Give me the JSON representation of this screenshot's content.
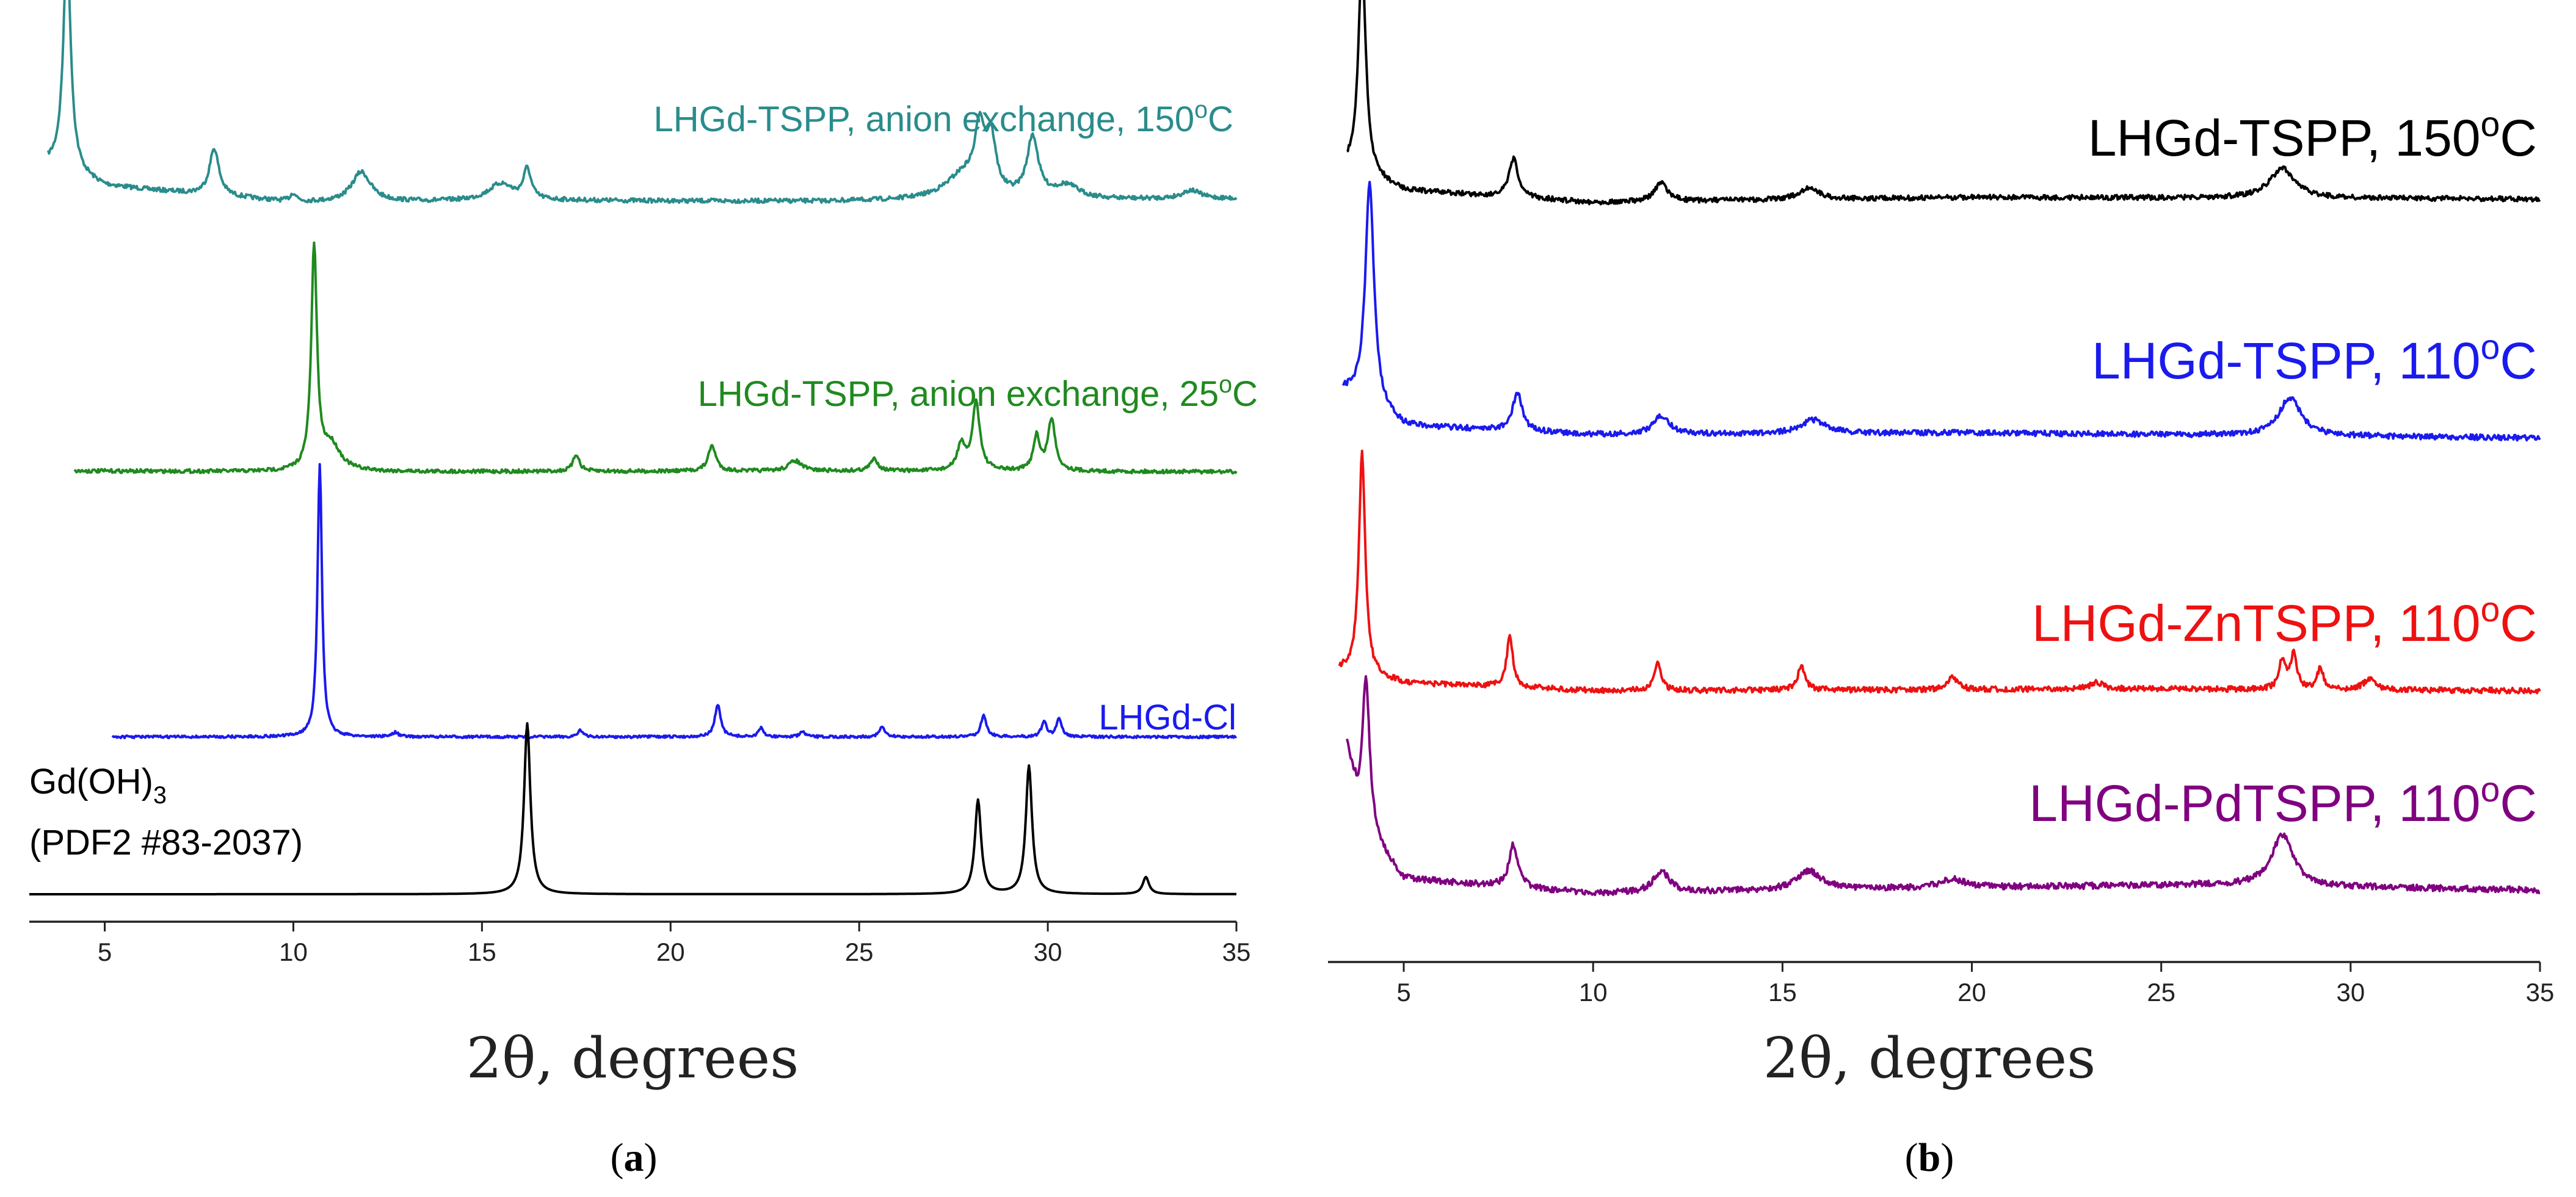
{
  "chart_data": [
    {
      "type": "line",
      "panel": "(a)",
      "panel_letter": "a",
      "xlabel": "2θ, degrees",
      "xlim": [
        3,
        35
      ],
      "xticks": [
        5,
        10,
        15,
        20,
        25,
        30,
        35
      ],
      "y_axis": "hidden",
      "grid": false,
      "legend": "inline labels",
      "series": [
        {
          "name": "LHGd-TSPP, anion exchange, 150°C",
          "label_main": "LHGd-TSPP, anion exchange, 150",
          "label_sup": "o",
          "label_end": "C",
          "color": "#2a8c8c",
          "x_start": 3.5,
          "baseline": [
            [
              3.5,
              0.5
            ],
            [
              5,
              0.25
            ],
            [
              10,
              0.06
            ],
            [
              17,
              0.08
            ],
            [
              24,
              0.07
            ],
            [
              35,
              0.1
            ]
          ],
          "peaks": [
            [
              4.0,
              2.6,
              0.12
            ],
            [
              7.9,
              0.55,
              0.15
            ],
            [
              10.0,
              0.1,
              0.1
            ],
            [
              11.8,
              0.35,
              0.3
            ],
            [
              15.5,
              0.2,
              0.4
            ],
            [
              16.2,
              0.35,
              0.12
            ],
            [
              27.8,
              0.3,
              0.6
            ],
            [
              28.2,
              0.7,
              0.15
            ],
            [
              28.5,
              0.6,
              0.15
            ],
            [
              29.6,
              0.7,
              0.18
            ],
            [
              30.5,
              0.15,
              0.4
            ],
            [
              33.8,
              0.1,
              0.3
            ]
          ]
        },
        {
          "name": "LHGd-TSPP, anion exchange, 25°C",
          "label_main": "LHGd-TSPP, anion exchange, 25",
          "label_sup": "o",
          "label_end": "C",
          "color": "#1f8a1f",
          "x_start": 4.2,
          "baseline": [
            [
              4.2,
              0.06
            ],
            [
              10,
              0.05
            ],
            [
              25,
              0.06
            ],
            [
              35,
              0.05
            ]
          ],
          "peaks": [
            [
              10.55,
              2.6,
              0.09
            ],
            [
              11.0,
              0.3,
              0.3
            ],
            [
              17.5,
              0.2,
              0.1
            ],
            [
              21.1,
              0.3,
              0.12
            ],
            [
              23.3,
              0.12,
              0.2
            ],
            [
              25.4,
              0.14,
              0.12
            ],
            [
              27.7,
              0.3,
              0.12
            ],
            [
              28.1,
              0.8,
              0.12
            ],
            [
              29.7,
              0.4,
              0.1
            ],
            [
              30.1,
              0.6,
              0.12
            ]
          ]
        },
        {
          "name": "LHGd-Cl",
          "label_main": "LHGd-Cl",
          "label_sup": "",
          "label_end": "",
          "color": "#1a1aee",
          "x_start": 5.2,
          "baseline": [
            [
              5.2,
              0.02
            ],
            [
              35,
              0.02
            ]
          ],
          "peaks": [
            [
              10.7,
              3.2,
              0.07
            ],
            [
              12.7,
              0.05,
              0.1
            ],
            [
              17.6,
              0.08,
              0.08
            ],
            [
              21.25,
              0.38,
              0.09
            ],
            [
              22.4,
              0.1,
              0.08
            ],
            [
              23.5,
              0.06,
              0.08
            ],
            [
              25.6,
              0.12,
              0.08
            ],
            [
              28.3,
              0.25,
              0.09
            ],
            [
              29.9,
              0.18,
              0.08
            ],
            [
              30.3,
              0.22,
              0.08
            ]
          ]
        },
        {
          "name": "Gd(OH)3 (PDF2 #83-2037)",
          "label_main": "Gd(OH)",
          "label_sub": "3",
          "label_line2": "(PDF2 #83-2037)",
          "color": "#000000",
          "x_start": 3.0,
          "baseline": [
            [
              3,
              0.0
            ],
            [
              35,
              0.0
            ]
          ],
          "peaks": [
            [
              16.2,
              2.0,
              0.1
            ],
            [
              28.15,
              1.1,
              0.1
            ],
            [
              29.5,
              1.5,
              0.1
            ],
            [
              32.6,
              0.2,
              0.1
            ]
          ]
        }
      ]
    },
    {
      "type": "line",
      "panel": "(b)",
      "panel_letter": "b",
      "xlabel": "2θ, degrees",
      "xlim": [
        3,
        35
      ],
      "xticks": [
        5,
        10,
        15,
        20,
        25,
        30,
        35
      ],
      "y_axis": "hidden",
      "grid": false,
      "legend": "inline labels",
      "series": [
        {
          "name": "LHGd-TSPP, 150°C",
          "label_main": "LHGd-TSPP, 150",
          "label_sup": "o",
          "label_end": "C",
          "color": "#000000",
          "x_start": 3.5,
          "baseline": [
            [
              3.5,
              0.45
            ],
            [
              5,
              0.2
            ],
            [
              10,
              0.06
            ],
            [
              20,
              0.12
            ],
            [
              35,
              0.1
            ]
          ],
          "peaks": [
            [
              3.9,
              2.5,
              0.12
            ],
            [
              7.9,
              0.45,
              0.14
            ],
            [
              11.8,
              0.22,
              0.2
            ],
            [
              15.7,
              0.14,
              0.3
            ],
            [
              28.2,
              0.35,
              0.4
            ]
          ]
        },
        {
          "name": "LHGd-TSPP, 110°C",
          "label_main": "LHGd-TSPP, 110",
          "label_sup": "o",
          "label_end": "C",
          "color": "#1a1aee",
          "x_start": 3.4,
          "baseline": [
            [
              3.4,
              0.6
            ],
            [
              5,
              0.2
            ],
            [
              10,
              0.1
            ],
            [
              20,
              0.12
            ],
            [
              35,
              0.06
            ]
          ],
          "peaks": [
            [
              4.1,
              2.6,
              0.14
            ],
            [
              8.0,
              0.45,
              0.15
            ],
            [
              11.8,
              0.22,
              0.25
            ],
            [
              15.8,
              0.16,
              0.4
            ],
            [
              28.4,
              0.45,
              0.35
            ]
          ]
        },
        {
          "name": "LHGd-ZnTSPP, 110°C",
          "label_main": "LHGd-ZnTSPP, 110",
          "label_sup": "o",
          "label_end": "C",
          "color": "#ee1111",
          "x_start": 3.3,
          "baseline": [
            [
              3.3,
              0.3
            ],
            [
              5,
              0.15
            ],
            [
              10,
              0.06
            ],
            [
              25,
              0.08
            ],
            [
              35,
              0.06
            ]
          ],
          "peaks": [
            [
              3.9,
              2.6,
              0.1
            ],
            [
              7.8,
              0.6,
              0.1
            ],
            [
              11.7,
              0.35,
              0.1
            ],
            [
              15.5,
              0.28,
              0.12
            ],
            [
              19.5,
              0.15,
              0.15
            ],
            [
              23.3,
              0.08,
              0.2
            ],
            [
              28.2,
              0.35,
              0.1
            ],
            [
              28.5,
              0.4,
              0.1
            ],
            [
              29.2,
              0.25,
              0.1
            ],
            [
              30.5,
              0.12,
              0.2
            ]
          ]
        },
        {
          "name": "LHGd-PdTSPP, 110°C",
          "label_main": "LHGd-PdTSPP, 110",
          "label_sup": "o",
          "label_end": "C",
          "color": "#800080",
          "x_start": 3.5,
          "baseline": [
            [
              3.5,
              1.8
            ],
            [
              3.85,
              0.9
            ],
            [
              5,
              0.25
            ],
            [
              10,
              0.08
            ],
            [
              20,
              0.15
            ],
            [
              26,
              0.18
            ],
            [
              35,
              0.12
            ]
          ],
          "peaks": [
            [
              4.0,
              1.8,
              0.12
            ],
            [
              7.9,
              0.5,
              0.14
            ],
            [
              11.8,
              0.25,
              0.25
            ],
            [
              15.7,
              0.22,
              0.4
            ],
            [
              19.5,
              0.1,
              0.4
            ],
            [
              28.2,
              0.6,
              0.35
            ]
          ]
        }
      ]
    }
  ]
}
